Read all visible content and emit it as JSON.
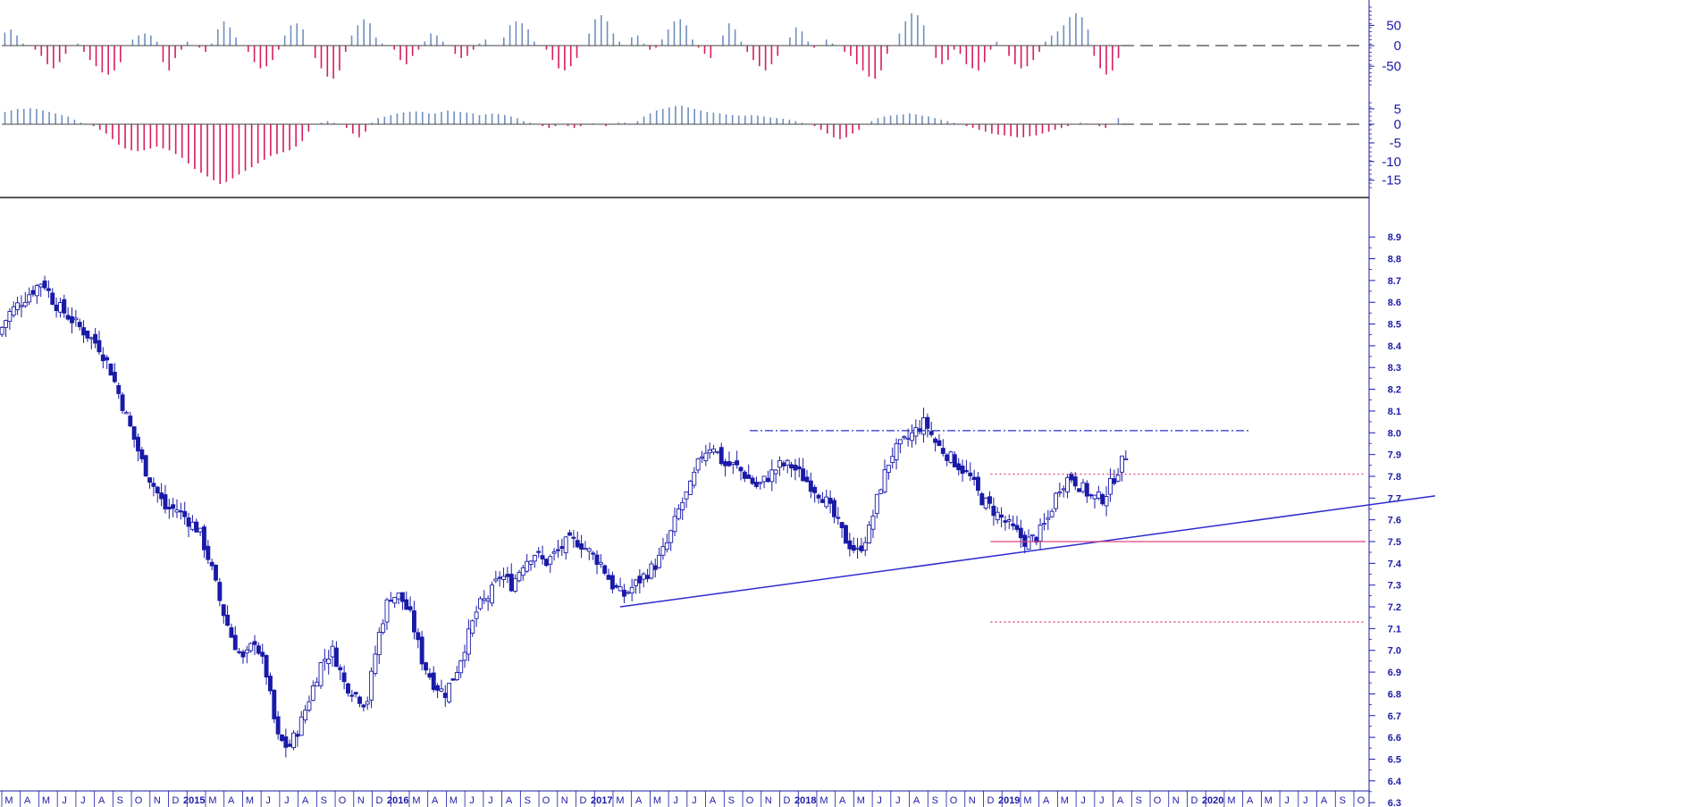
{
  "colors": {
    "axis": "#1a1aa8",
    "bull_bar": "#6f8fbf",
    "bear_bar": "#d81b60",
    "candle_up": "#1a1aa8",
    "candle_down": "#1a1aa8",
    "trendline": "#2b2bd1",
    "support": "#e0457b",
    "resistance_dotted": "#e0457b",
    "resistance_dashdot": "#2b2bd1",
    "zero_line": "#444444"
  },
  "oscillator_top": {
    "ticks": [
      50,
      0,
      -50
    ],
    "tick_labels": [
      "50",
      "0",
      "-50"
    ],
    "range": [
      -95,
      95
    ],
    "values": [
      32,
      40,
      25,
      5,
      0,
      -10,
      -25,
      -45,
      -55,
      -40,
      -20,
      0,
      5,
      -15,
      -35,
      -50,
      -65,
      -70,
      -60,
      -40,
      0,
      15,
      25,
      30,
      25,
      10,
      -40,
      -60,
      -30,
      -10,
      10,
      0,
      -5,
      -15,
      5,
      40,
      60,
      45,
      20,
      0,
      -15,
      -40,
      -55,
      -50,
      -35,
      -10,
      25,
      50,
      55,
      40,
      0,
      -30,
      -55,
      -75,
      -80,
      -60,
      -15,
      25,
      50,
      65,
      55,
      20,
      5,
      0,
      -10,
      -35,
      -45,
      -25,
      -10,
      10,
      30,
      25,
      10,
      0,
      -20,
      -30,
      -25,
      -10,
      5,
      15,
      0,
      0,
      20,
      50,
      60,
      55,
      40,
      10,
      0,
      -10,
      -35,
      -55,
      -60,
      -50,
      -30,
      0,
      30,
      65,
      75,
      60,
      30,
      10,
      0,
      20,
      25,
      5,
      -10,
      -5,
      15,
      40,
      60,
      65,
      50,
      15,
      -5,
      -20,
      -30,
      0,
      25,
      55,
      40,
      10,
      -15,
      -35,
      -50,
      -60,
      -45,
      -25,
      0,
      20,
      45,
      35,
      10,
      -5,
      0,
      15,
      5,
      0,
      -15,
      -25,
      -45,
      -60,
      -75,
      -80,
      -60,
      -20,
      0,
      30,
      60,
      80,
      75,
      50,
      0,
      -30,
      -45,
      -35,
      -10,
      -20,
      -45,
      -55,
      -60,
      -40,
      -10,
      10,
      0,
      -25,
      -45,
      -55,
      -50,
      -35,
      -15,
      10,
      25,
      35,
      50,
      70,
      80,
      70,
      40,
      -25,
      -55,
      -70,
      -60,
      -30
    ]
  },
  "oscillator_bottom": {
    "ticks": [
      5,
      0,
      -5,
      -10,
      -15
    ],
    "tick_labels": [
      "5",
      "0",
      "-5",
      "-10",
      "-15"
    ],
    "range": [
      -17,
      7
    ],
    "values": [
      4,
      4.5,
      5,
      5,
      5.2,
      5,
      4.5,
      4,
      3.5,
      3,
      2.5,
      1.5,
      0.5,
      0,
      -0.5,
      -1.5,
      -2.5,
      -4,
      -5.5,
      -6.5,
      -7,
      -7.2,
      -7,
      -6.5,
      -6,
      -6.5,
      -7,
      -8,
      -9,
      -10.5,
      -12,
      -13,
      -14,
      -15,
      -16,
      -15.5,
      -14.5,
      -13.5,
      -12.5,
      -11.5,
      -10.5,
      -9.5,
      -8.5,
      -8,
      -7.5,
      -7,
      -6,
      -4.5,
      -2,
      0,
      0.5,
      1,
      0.5,
      0,
      -1,
      -2.5,
      -3.5,
      -2,
      0.5,
      2,
      2.5,
      3,
      3.5,
      3.8,
      4,
      4.2,
      4,
      3.5,
      3.5,
      4,
      4.5,
      4.2,
      4,
      3.8,
      3.5,
      3,
      3.2,
      3.5,
      3.3,
      3,
      2.5,
      2,
      1,
      0.5,
      0,
      -0.5,
      -1,
      -0.5,
      0,
      -0.5,
      -1,
      -0.5,
      0,
      0.3,
      0,
      -0.5,
      0,
      0.5,
      0.5,
      0,
      1,
      2.5,
      3.5,
      4.5,
      5,
      5.5,
      6,
      6,
      5.5,
      5,
      4.5,
      4,
      3.8,
      3.5,
      3.2,
      3,
      2.8,
      2.8,
      3,
      2.8,
      2.5,
      2.2,
      2,
      1.8,
      1.5,
      1,
      0.5,
      0,
      -0.5,
      -1.5,
      -2.5,
      -3.5,
      -4,
      -3.5,
      -2.5,
      -1.5,
      0,
      1,
      2,
      2.5,
      2.8,
      3,
      3.2,
      3.5,
      3.2,
      2.8,
      2.5,
      2,
      1.5,
      1,
      0.5,
      0,
      -0.5,
      -1,
      -1.5,
      -2,
      -2.5,
      -2.8,
      -3,
      -3.2,
      -3.5,
      -3.5,
      -3.2,
      -3,
      -2.5,
      -2,
      -1.5,
      -1,
      -0.5,
      0,
      0.5,
      0.2,
      0,
      -0.5,
      -1,
      0,
      2
    ]
  },
  "price_axis": {
    "ticks": [
      "8.9",
      "8.8",
      "8.7",
      "8.6",
      "8.5",
      "8.4",
      "8.3",
      "8.2",
      "8.1",
      "8.0",
      "7.9",
      "7.8",
      "7.7",
      "7.6",
      "7.5",
      "7.4",
      "7.3",
      "7.2",
      "7.1",
      "7.0",
      "6.9",
      "6.8",
      "6.7",
      "6.6",
      "6.5",
      "6.4",
      "6.3"
    ],
    "range": [
      6.28,
      8.95
    ]
  },
  "time_axis": {
    "labels": [
      "M",
      "A",
      "M",
      "J",
      "J",
      "A",
      "S",
      "O",
      "N",
      "D",
      "2015",
      "M",
      "A",
      "M",
      "J",
      "J",
      "A",
      "S",
      "O",
      "N",
      "D",
      "2016",
      "M",
      "A",
      "M",
      "J",
      "J",
      "A",
      "S",
      "O",
      "N",
      "D",
      "2017",
      "M",
      "A",
      "M",
      "J",
      "J",
      "A",
      "S",
      "O",
      "N",
      "D",
      "2018",
      "M",
      "A",
      "M",
      "J",
      "J",
      "A",
      "S",
      "O",
      "N",
      "D",
      "2019",
      "M",
      "A",
      "M",
      "J",
      "J",
      "A",
      "S",
      "O",
      "N",
      "D",
      "2020",
      "M",
      "A",
      "M",
      "J",
      "J",
      "A",
      "S",
      "O"
    ]
  },
  "chart_data": {
    "type": "candlestick",
    "title": "",
    "period": "weekly",
    "x_start": "2014-03",
    "x_end": "2020-10",
    "close_series": [
      8.45,
      8.55,
      8.6,
      8.65,
      8.7,
      8.6,
      8.55,
      8.5,
      8.45,
      8.4,
      8.3,
      8.15,
      8.0,
      7.85,
      7.75,
      7.65,
      7.65,
      7.6,
      7.55,
      7.4,
      7.2,
      7.05,
      6.95,
      7.05,
      6.9,
      6.6,
      6.55,
      6.65,
      6.8,
      6.95,
      7.0,
      6.85,
      6.8,
      6.75,
      7.05,
      7.25,
      7.25,
      7.15,
      6.95,
      6.85,
      6.8,
      6.9,
      7.05,
      7.2,
      7.25,
      7.35,
      7.3,
      7.4,
      7.45,
      7.4,
      7.45,
      7.5,
      7.5,
      7.45,
      7.4,
      7.3,
      7.25,
      7.3,
      7.35,
      7.4,
      7.5,
      7.65,
      7.75,
      7.9,
      7.95,
      7.85,
      7.85,
      7.8,
      7.75,
      7.8,
      7.85,
      7.85,
      7.8,
      7.75,
      7.7,
      7.6,
      7.5,
      7.45,
      7.55,
      7.75,
      7.9,
      7.95,
      8.0,
      8.05,
      7.95,
      7.9,
      7.85,
      7.8,
      7.7,
      7.65,
      7.6,
      7.55,
      7.5,
      7.52,
      7.6,
      7.75,
      7.8,
      7.75,
      7.7,
      7.7,
      7.8,
      7.9
    ],
    "ylim": [
      6.28,
      8.95
    ],
    "annotations": [
      {
        "type": "trendline",
        "from": [
          "2016-12",
          7.2
        ],
        "to": [
          "2020-08",
          7.71
        ]
      },
      {
        "type": "hline",
        "style": "solid",
        "y": 7.5,
        "from": "2018-08"
      },
      {
        "type": "hline",
        "style": "dotted",
        "y": 7.81,
        "from": "2018-08"
      },
      {
        "type": "hline",
        "style": "dotted",
        "y": 7.13,
        "from": "2018-08"
      },
      {
        "type": "hline",
        "style": "dashdot",
        "y": 8.01,
        "from": "2017-07",
        "to": "2019-10"
      }
    ]
  }
}
